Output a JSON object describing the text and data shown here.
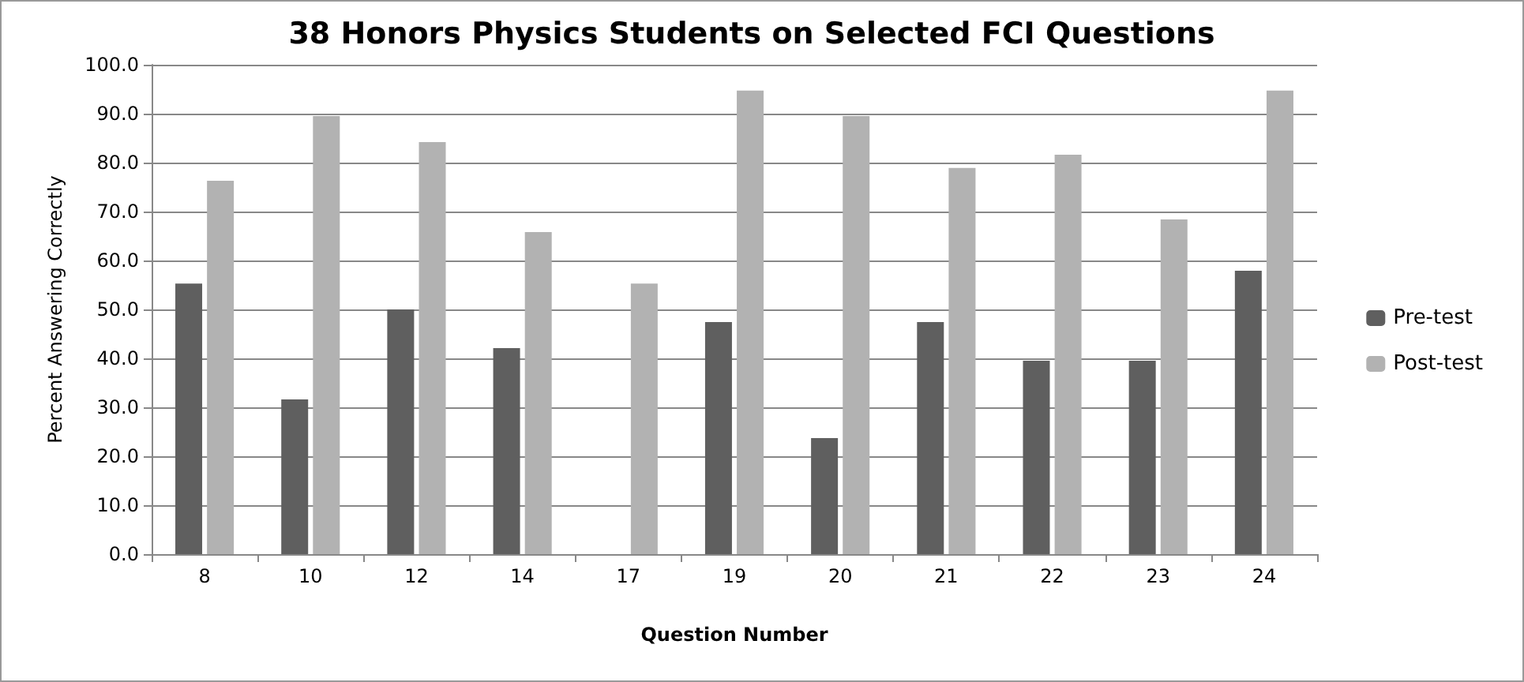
{
  "chart_data": {
    "type": "bar",
    "title": "38 Honors Physics Students on Selected FCI Questions",
    "xlabel": "Question Number",
    "ylabel": "Percent Answering Correctly",
    "categories": [
      "8",
      "10",
      "12",
      "14",
      "17",
      "19",
      "20",
      "21",
      "22",
      "23",
      "24"
    ],
    "series": [
      {
        "name": "Pre-test",
        "color": "#5f5f5f",
        "values": [
          55.3,
          31.6,
          50.0,
          42.1,
          0,
          47.4,
          23.7,
          47.4,
          39.5,
          39.5,
          57.9
        ]
      },
      {
        "name": "Post-test",
        "color": "#b2b2b2",
        "values": [
          76.3,
          89.5,
          84.2,
          65.8,
          55.3,
          94.7,
          89.5,
          78.9,
          81.6,
          68.4,
          94.7
        ]
      }
    ],
    "ylim": [
      0,
      100
    ],
    "yticks": [
      {
        "value": 0,
        "label": "0.0"
      },
      {
        "value": 10,
        "label": "10.0"
      },
      {
        "value": 20,
        "label": "20.0"
      },
      {
        "value": 30,
        "label": "30.0"
      },
      {
        "value": 40,
        "label": "40.0"
      },
      {
        "value": 50,
        "label": "50.0"
      },
      {
        "value": 60,
        "label": "60.0"
      },
      {
        "value": 70,
        "label": "70.0"
      },
      {
        "value": 80,
        "label": "80.0"
      },
      {
        "value": 90,
        "label": "90.0"
      },
      {
        "value": 100,
        "label": "100.0"
      }
    ],
    "grid": "y",
    "legend": "right"
  }
}
